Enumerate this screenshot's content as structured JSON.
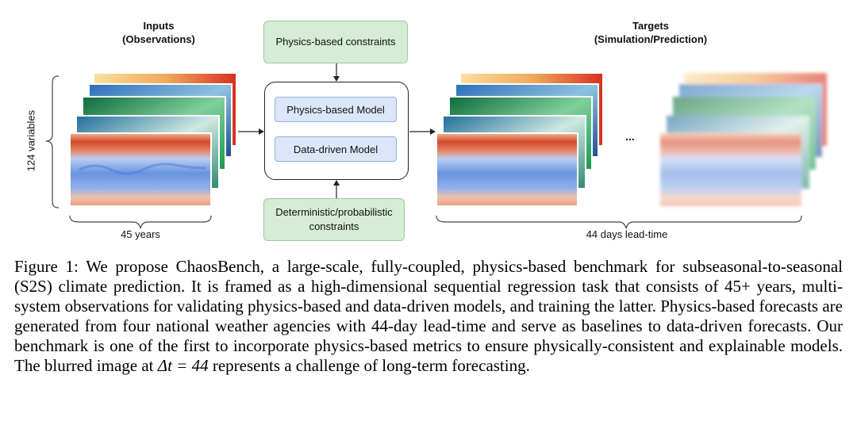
{
  "inputs": {
    "title_line1": "Inputs",
    "title_line2": "(Observations)",
    "variables_label": "124 variables",
    "years_label": "45 years"
  },
  "targets": {
    "title_line1": "Targets",
    "title_line2": "(Simulation/Prediction)",
    "lead_time_label": "44 days lead-time",
    "ellipsis": "..."
  },
  "constraints": {
    "top": "Physics-based constraints",
    "bottom_line1": "Deterministic/probabilistic",
    "bottom_line2": "constraints"
  },
  "models": {
    "physics": "Physics-based Model",
    "data_driven": "Data-driven Model"
  },
  "caption": {
    "text_before": "Figure 1: We propose ChaosBench, a large-scale, fully-coupled, physics-based benchmark for subseasonal-to-seasonal (S2S) climate prediction. It is framed as a high-dimensional sequential regression task that consists of 45+ years, multi-system observations for validating physics-based and data-driven models, and training the latter. Physics-based forecasts are generated from four national weather agencies with 44-day lead-time and serve as baselines to data-driven forecasts. Our benchmark is one of the first to incorporate physics-based metrics to ensure physically-consistent and explainable models. The blurred image at ",
    "math": "Δt = 44",
    "text_after": " represents a challenge of long-term forecasting."
  },
  "colors": {
    "green_fill": "#d4edd4",
    "blue_fill": "#dbe7f8",
    "map_warm": "#d7301f",
    "map_cool": "#6a94e0",
    "map_green": "#1a9850",
    "map_teal": "#1f6e9a"
  }
}
